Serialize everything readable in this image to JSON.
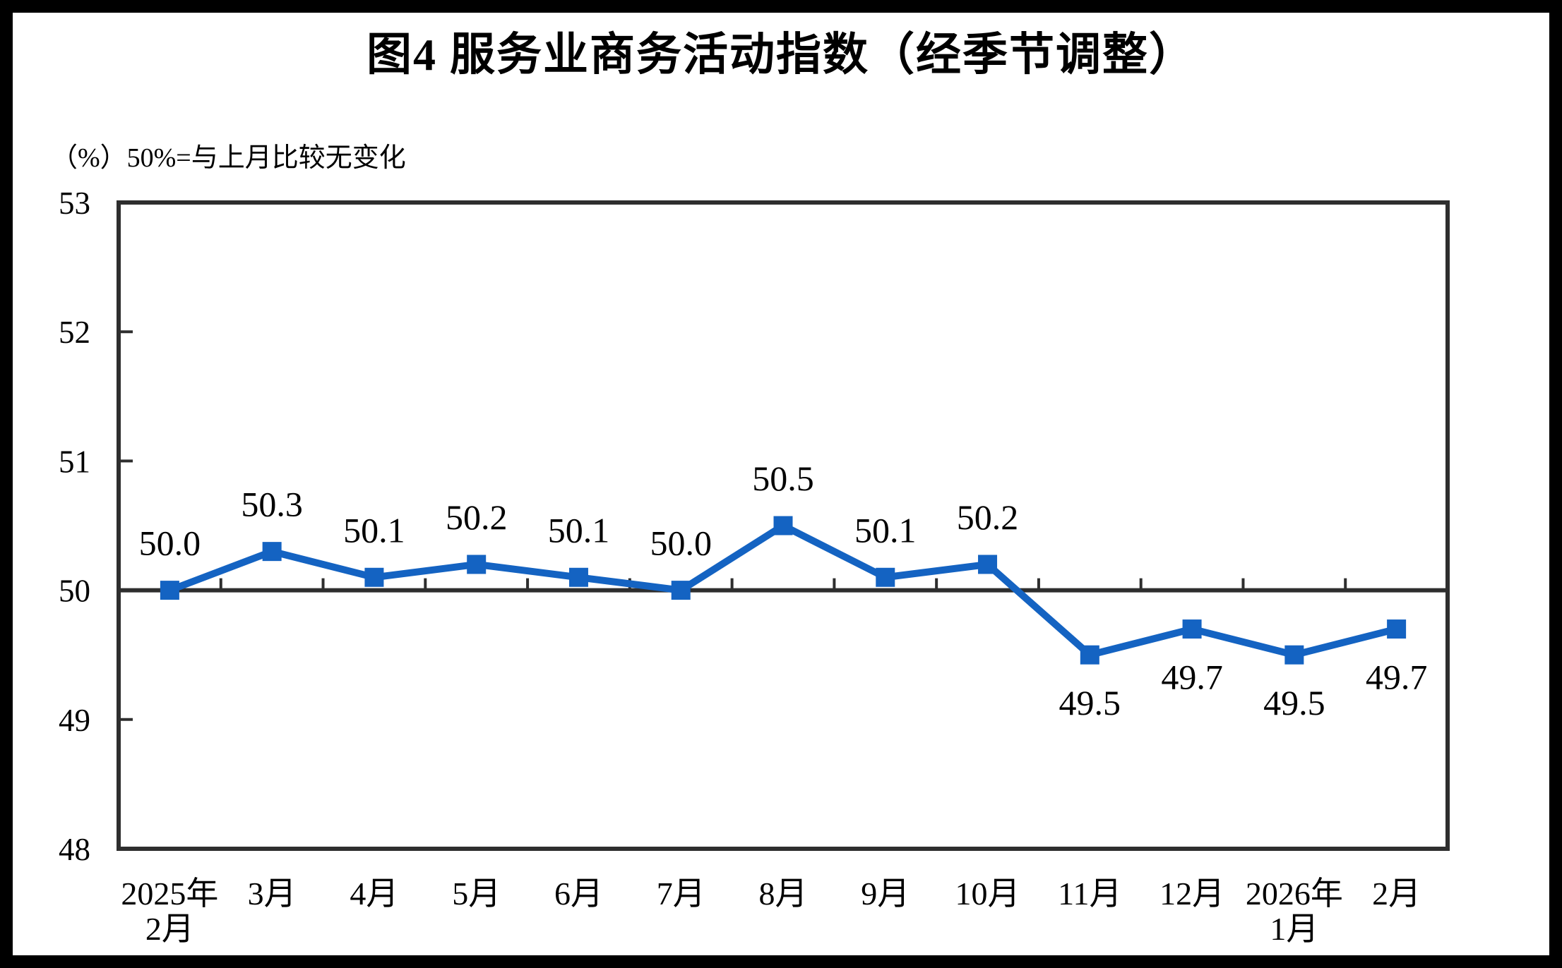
{
  "page": {
    "background_color": "#FFFFFF",
    "frame_color": "#000000"
  },
  "chart_data": {
    "type": "line",
    "title": "图4 服务业商务活动指数（经季节调整）",
    "ylabel_note": "（%）50%=与上月比较无变化",
    "categories": [
      [
        "2025年",
        "2月"
      ],
      [
        "3月"
      ],
      [
        "4月"
      ],
      [
        "5月"
      ],
      [
        "6月"
      ],
      [
        "7月"
      ],
      [
        "8月"
      ],
      [
        "9月"
      ],
      [
        "10月"
      ],
      [
        "11月"
      ],
      [
        "12月"
      ],
      [
        "2026年",
        "1月"
      ],
      [
        "2月"
      ]
    ],
    "series": [
      {
        "name": "服务业商务活动指数",
        "values": [
          50.0,
          50.3,
          50.1,
          50.2,
          50.1,
          50.0,
          50.5,
          50.1,
          50.2,
          49.5,
          49.7,
          49.5,
          49.7
        ]
      }
    ],
    "data_labels": [
      "50.0",
      "50.3",
      "50.1",
      "50.2",
      "50.1",
      "50.0",
      "50.5",
      "50.1",
      "50.2",
      "49.5",
      "49.7",
      "49.5",
      "49.7"
    ],
    "ylim": [
      48,
      53
    ],
    "yticks": [
      48,
      49,
      50,
      51,
      52,
      53
    ],
    "axis_crosses_at": 50,
    "grid": false,
    "legend": "none",
    "line_color": "#1463C2",
    "marker": "square",
    "axis_color": "#2E2E2E"
  }
}
